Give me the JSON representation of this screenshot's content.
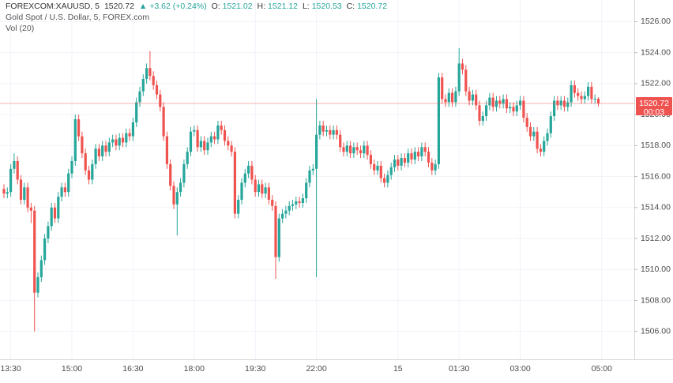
{
  "header": {
    "symbol": "FOREXCOM:XAUUSD, 5",
    "last": "1520.72",
    "change": "+3.62 (+0.24%)",
    "o_label": "O:",
    "o": "1521.02",
    "h_label": "H:",
    "h": "1521.12",
    "l_label": "L:",
    "l": "1520.53",
    "c_label": "C:",
    "c": "1520.72",
    "description": "Gold Spot / U.S. Dollar, 5, FOREX.com",
    "indicator": "Vol (20)"
  },
  "chart_data": {
    "type": "candlestick",
    "up_color": "#26a69a",
    "down_color": "#ef5350",
    "grid": true,
    "countdown": "00:03",
    "ylim": [
      1504.2,
      1527.4
    ],
    "yticks": [
      {
        "value": 1506,
        "label": "1506.00"
      },
      {
        "value": 1508,
        "label": "1508.00"
      },
      {
        "value": 1510,
        "label": "1510.00"
      },
      {
        "value": 1512,
        "label": "1512.00"
      },
      {
        "value": 1514,
        "label": "1514.00"
      },
      {
        "value": 1516,
        "label": "1516.00"
      },
      {
        "value": 1518,
        "label": "1518.00"
      },
      {
        "value": 1520,
        "label": "1520.00"
      },
      {
        "value": 1522,
        "label": "1522.00"
      },
      {
        "value": 1524,
        "label": "1524.00"
      },
      {
        "value": 1526,
        "label": "1526.00"
      }
    ],
    "xticks": [
      {
        "value": 2,
        "label": "13:30"
      },
      {
        "value": 20,
        "label": "15:00"
      },
      {
        "value": 38,
        "label": "16:30"
      },
      {
        "value": 56,
        "label": "18:00"
      },
      {
        "value": 74,
        "label": "19:30"
      },
      {
        "value": 92,
        "label": "22:00"
      },
      {
        "value": 116,
        "label": "15"
      },
      {
        "value": 134,
        "label": "01:30"
      },
      {
        "value": 152,
        "label": "03:00"
      },
      {
        "value": 176,
        "label": "05:00"
      }
    ],
    "open": [
      1515.2,
      1514.9,
      1515.0,
      1516.5,
      1517.0,
      1515.8,
      1514.5,
      1515.3,
      1514.0,
      1513.8,
      1508.5,
      1509.5,
      1510.6,
      1512.0,
      1512.8,
      1514.0,
      1513.3,
      1514.7,
      1515.3,
      1515.0,
      1516.2,
      1517.0,
      1519.7,
      1518.6,
      1517.5,
      1516.4,
      1515.8,
      1516.8,
      1517.8,
      1517.3,
      1518.0,
      1517.6,
      1518.2,
      1518.4,
      1518.0,
      1518.5,
      1518.2,
      1518.8,
      1518.6,
      1519.5,
      1520.8,
      1521.5,
      1522.3,
      1523.0,
      1522.5,
      1521.9,
      1521.3,
      1520.5,
      1518.6,
      1516.8,
      1515.4,
      1514.2,
      1515.0,
      1515.6,
      1516.8,
      1517.6,
      1518.9,
      1519.0,
      1517.9,
      1518.3,
      1517.7,
      1518.2,
      1518.6,
      1518.4,
      1519.3,
      1519.0,
      1518.3,
      1518.0,
      1517.6,
      1513.6,
      1514.5,
      1515.6,
      1516.2,
      1516.7,
      1515.8,
      1515.0,
      1515.5,
      1514.9,
      1515.3,
      1514.5,
      1514.1,
      1510.8,
      1513.3,
      1513.6,
      1513.8,
      1514.1,
      1514.2,
      1514.4,
      1514.3,
      1514.6,
      1515.6,
      1516.4,
      1516.5,
      1518.7,
      1519.3,
      1518.9,
      1519.0,
      1518.7,
      1519.0,
      1518.7,
      1517.9,
      1517.6,
      1518.0,
      1517.5,
      1517.9,
      1517.7,
      1517.5,
      1518.0,
      1517.4,
      1516.8,
      1516.4,
      1516.7,
      1515.9,
      1515.6,
      1516.1,
      1516.6,
      1517.1,
      1516.7,
      1517.2,
      1516.9,
      1517.5,
      1517.1,
      1517.6,
      1517.3,
      1517.9,
      1517.6,
      1516.9,
      1516.4,
      1516.8,
      1522.4,
      1521.0,
      1520.8,
      1521.4,
      1520.8,
      1521.5,
      1523.3,
      1522.9,
      1521.5,
      1520.9,
      1521.3,
      1520.6,
      1519.6,
      1519.9,
      1520.6,
      1521.1,
      1520.5,
      1520.9,
      1520.7,
      1521.0,
      1520.4,
      1520.5,
      1520.2,
      1520.6,
      1520.9,
      1519.8,
      1519.2,
      1518.6,
      1518.9,
      1517.8,
      1517.6,
      1518.3,
      1518.8,
      1519.9,
      1520.9,
      1520.6,
      1520.9,
      1520.5,
      1520.8,
      1521.9,
      1521.4,
      1521.2,
      1521.0,
      1521.2,
      1521.8,
      1521.0,
      1521.02
    ],
    "high": [
      1515.5,
      1515.3,
      1516.8,
      1517.5,
      1517.3,
      1516.1,
      1515.6,
      1515.6,
      1514.3,
      1514.1,
      1509.8,
      1510.9,
      1512.3,
      1513.1,
      1514.3,
      1514.3,
      1515.0,
      1515.6,
      1515.6,
      1516.5,
      1517.3,
      1520.0,
      1520.0,
      1518.9,
      1517.8,
      1516.7,
      1517.1,
      1518.1,
      1518.1,
      1518.3,
      1518.3,
      1518.5,
      1518.7,
      1518.7,
      1518.8,
      1518.8,
      1519.1,
      1519.1,
      1519.8,
      1521.1,
      1521.8,
      1522.6,
      1523.3,
      1524.1,
      1522.8,
      1522.2,
      1521.6,
      1520.8,
      1518.9,
      1517.1,
      1515.7,
      1515.3,
      1515.9,
      1517.1,
      1517.9,
      1519.2,
      1519.3,
      1519.3,
      1518.6,
      1518.6,
      1518.5,
      1518.9,
      1518.9,
      1519.6,
      1519.6,
      1519.3,
      1518.6,
      1518.3,
      1517.9,
      1514.8,
      1515.9,
      1516.5,
      1517.0,
      1517.0,
      1516.1,
      1515.8,
      1515.8,
      1515.6,
      1515.6,
      1514.8,
      1514.4,
      1513.6,
      1513.9,
      1514.1,
      1514.4,
      1514.5,
      1514.7,
      1514.7,
      1514.9,
      1515.9,
      1516.7,
      1516.8,
      1521.0,
      1519.6,
      1519.6,
      1519.3,
      1519.3,
      1519.3,
      1519.3,
      1519.0,
      1518.2,
      1518.3,
      1518.3,
      1518.2,
      1518.2,
      1518.0,
      1518.3,
      1518.3,
      1517.7,
      1517.1,
      1517.0,
      1517.0,
      1516.2,
      1516.4,
      1516.9,
      1517.4,
      1517.4,
      1517.5,
      1517.5,
      1517.8,
      1517.8,
      1517.9,
      1517.9,
      1518.2,
      1518.2,
      1517.9,
      1517.2,
      1517.1,
      1522.7,
      1522.7,
      1521.3,
      1521.7,
      1521.7,
      1521.8,
      1524.3,
      1523.6,
      1523.2,
      1521.8,
      1521.6,
      1521.6,
      1520.9,
      1520.2,
      1520.9,
      1521.4,
      1521.4,
      1521.2,
      1521.2,
      1521.3,
      1521.3,
      1520.8,
      1520.8,
      1520.9,
      1521.2,
      1521.2,
      1520.1,
      1519.5,
      1519.2,
      1519.2,
      1518.1,
      1518.6,
      1519.1,
      1520.2,
      1521.2,
      1521.2,
      1521.2,
      1521.2,
      1521.1,
      1522.2,
      1522.2,
      1521.7,
      1521.5,
      1521.5,
      1522.1,
      1522.1,
      1521.3,
      1521.12
    ],
    "low": [
      1514.6,
      1514.6,
      1514.7,
      1516.2,
      1515.5,
      1514.2,
      1514.2,
      1513.7,
      1513.0,
      1506.0,
      1508.2,
      1509.2,
      1510.3,
      1511.7,
      1512.5,
      1513.0,
      1513.0,
      1514.4,
      1514.7,
      1514.7,
      1515.9,
      1516.7,
      1518.3,
      1517.2,
      1516.1,
      1515.5,
      1515.5,
      1516.5,
      1517.0,
      1517.0,
      1517.3,
      1517.3,
      1517.9,
      1517.7,
      1517.7,
      1517.9,
      1517.9,
      1518.3,
      1518.3,
      1519.2,
      1520.5,
      1521.2,
      1522.0,
      1522.2,
      1521.6,
      1521.0,
      1520.2,
      1518.3,
      1516.5,
      1515.1,
      1513.9,
      1512.2,
      1514.7,
      1515.3,
      1516.5,
      1517.3,
      1518.6,
      1517.6,
      1517.6,
      1517.4,
      1517.4,
      1517.9,
      1518.1,
      1518.1,
      1518.7,
      1518.0,
      1517.7,
      1517.3,
      1513.3,
      1513.3,
      1514.2,
      1515.3,
      1515.9,
      1515.5,
      1514.7,
      1514.7,
      1514.6,
      1514.6,
      1514.2,
      1513.8,
      1509.4,
      1510.5,
      1513.0,
      1513.3,
      1513.5,
      1513.8,
      1513.9,
      1514.0,
      1514.0,
      1514.3,
      1515.3,
      1516.1,
      1509.5,
      1518.4,
      1518.6,
      1518.6,
      1518.4,
      1518.4,
      1518.4,
      1517.6,
      1517.3,
      1517.3,
      1517.2,
      1517.2,
      1517.4,
      1517.2,
      1517.2,
      1517.1,
      1516.5,
      1516.1,
      1516.1,
      1515.6,
      1515.3,
      1515.3,
      1515.8,
      1516.3,
      1516.4,
      1516.4,
      1516.6,
      1516.6,
      1516.8,
      1516.8,
      1517.0,
      1517.0,
      1517.3,
      1516.6,
      1516.1,
      1516.1,
      1516.5,
      1520.7,
      1520.5,
      1520.5,
      1520.5,
      1520.5,
      1521.2,
      1522.6,
      1521.2,
      1520.6,
      1520.6,
      1520.3,
      1519.3,
      1519.3,
      1519.6,
      1520.3,
      1520.2,
      1520.2,
      1520.4,
      1520.4,
      1520.1,
      1520.1,
      1519.9,
      1519.9,
      1520.3,
      1519.5,
      1518.9,
      1518.3,
      1518.3,
      1517.5,
      1517.3,
      1517.3,
      1518.0,
      1518.5,
      1519.6,
      1520.3,
      1520.3,
      1520.2,
      1520.2,
      1520.5,
      1521.1,
      1520.9,
      1520.7,
      1520.7,
      1520.9,
      1520.7,
      1520.7,
      1520.53
    ],
    "close": [
      1514.9,
      1515.0,
      1516.5,
      1517.0,
      1515.8,
      1514.5,
      1515.3,
      1514.0,
      1513.8,
      1508.5,
      1509.5,
      1510.6,
      1512.0,
      1512.8,
      1514.0,
      1513.3,
      1514.7,
      1515.3,
      1515.0,
      1516.2,
      1517.0,
      1519.7,
      1518.6,
      1517.5,
      1516.4,
      1515.8,
      1516.8,
      1517.8,
      1517.3,
      1518.0,
      1517.6,
      1518.2,
      1518.4,
      1518.0,
      1518.5,
      1518.2,
      1518.8,
      1518.6,
      1519.5,
      1520.8,
      1521.5,
      1522.3,
      1523.0,
      1522.5,
      1521.9,
      1521.3,
      1520.5,
      1518.6,
      1516.8,
      1515.4,
      1514.2,
      1515.0,
      1515.6,
      1516.8,
      1517.6,
      1518.9,
      1519.0,
      1517.9,
      1518.3,
      1517.7,
      1518.2,
      1518.6,
      1518.4,
      1519.3,
      1519.0,
      1518.3,
      1518.0,
      1517.6,
      1513.6,
      1514.5,
      1515.6,
      1516.2,
      1516.7,
      1515.8,
      1515.0,
      1515.5,
      1514.9,
      1515.3,
      1514.5,
      1514.1,
      1510.8,
      1513.3,
      1513.6,
      1513.8,
      1514.1,
      1514.2,
      1514.4,
      1514.3,
      1514.6,
      1515.6,
      1516.4,
      1516.5,
      1518.7,
      1519.3,
      1518.9,
      1519.0,
      1518.7,
      1519.0,
      1518.7,
      1517.9,
      1517.6,
      1518.0,
      1517.5,
      1517.9,
      1517.7,
      1517.5,
      1518.0,
      1517.4,
      1516.8,
      1516.4,
      1516.7,
      1515.9,
      1515.6,
      1516.1,
      1516.6,
      1517.1,
      1516.7,
      1517.2,
      1516.9,
      1517.5,
      1517.1,
      1517.6,
      1517.3,
      1517.9,
      1517.6,
      1516.9,
      1516.4,
      1516.8,
      1522.4,
      1521.0,
      1520.8,
      1521.4,
      1520.8,
      1521.5,
      1523.3,
      1522.9,
      1521.5,
      1520.9,
      1521.3,
      1520.6,
      1519.6,
      1519.9,
      1520.6,
      1521.1,
      1520.5,
      1520.9,
      1520.7,
      1521.0,
      1520.4,
      1520.5,
      1520.2,
      1520.6,
      1520.9,
      1519.8,
      1519.2,
      1518.6,
      1518.9,
      1517.8,
      1517.6,
      1518.3,
      1518.8,
      1519.9,
      1520.9,
      1520.6,
      1520.9,
      1520.5,
      1520.8,
      1521.9,
      1521.4,
      1521.2,
      1521.0,
      1521.2,
      1521.8,
      1521.0,
      1521.02,
      1520.72
    ]
  }
}
